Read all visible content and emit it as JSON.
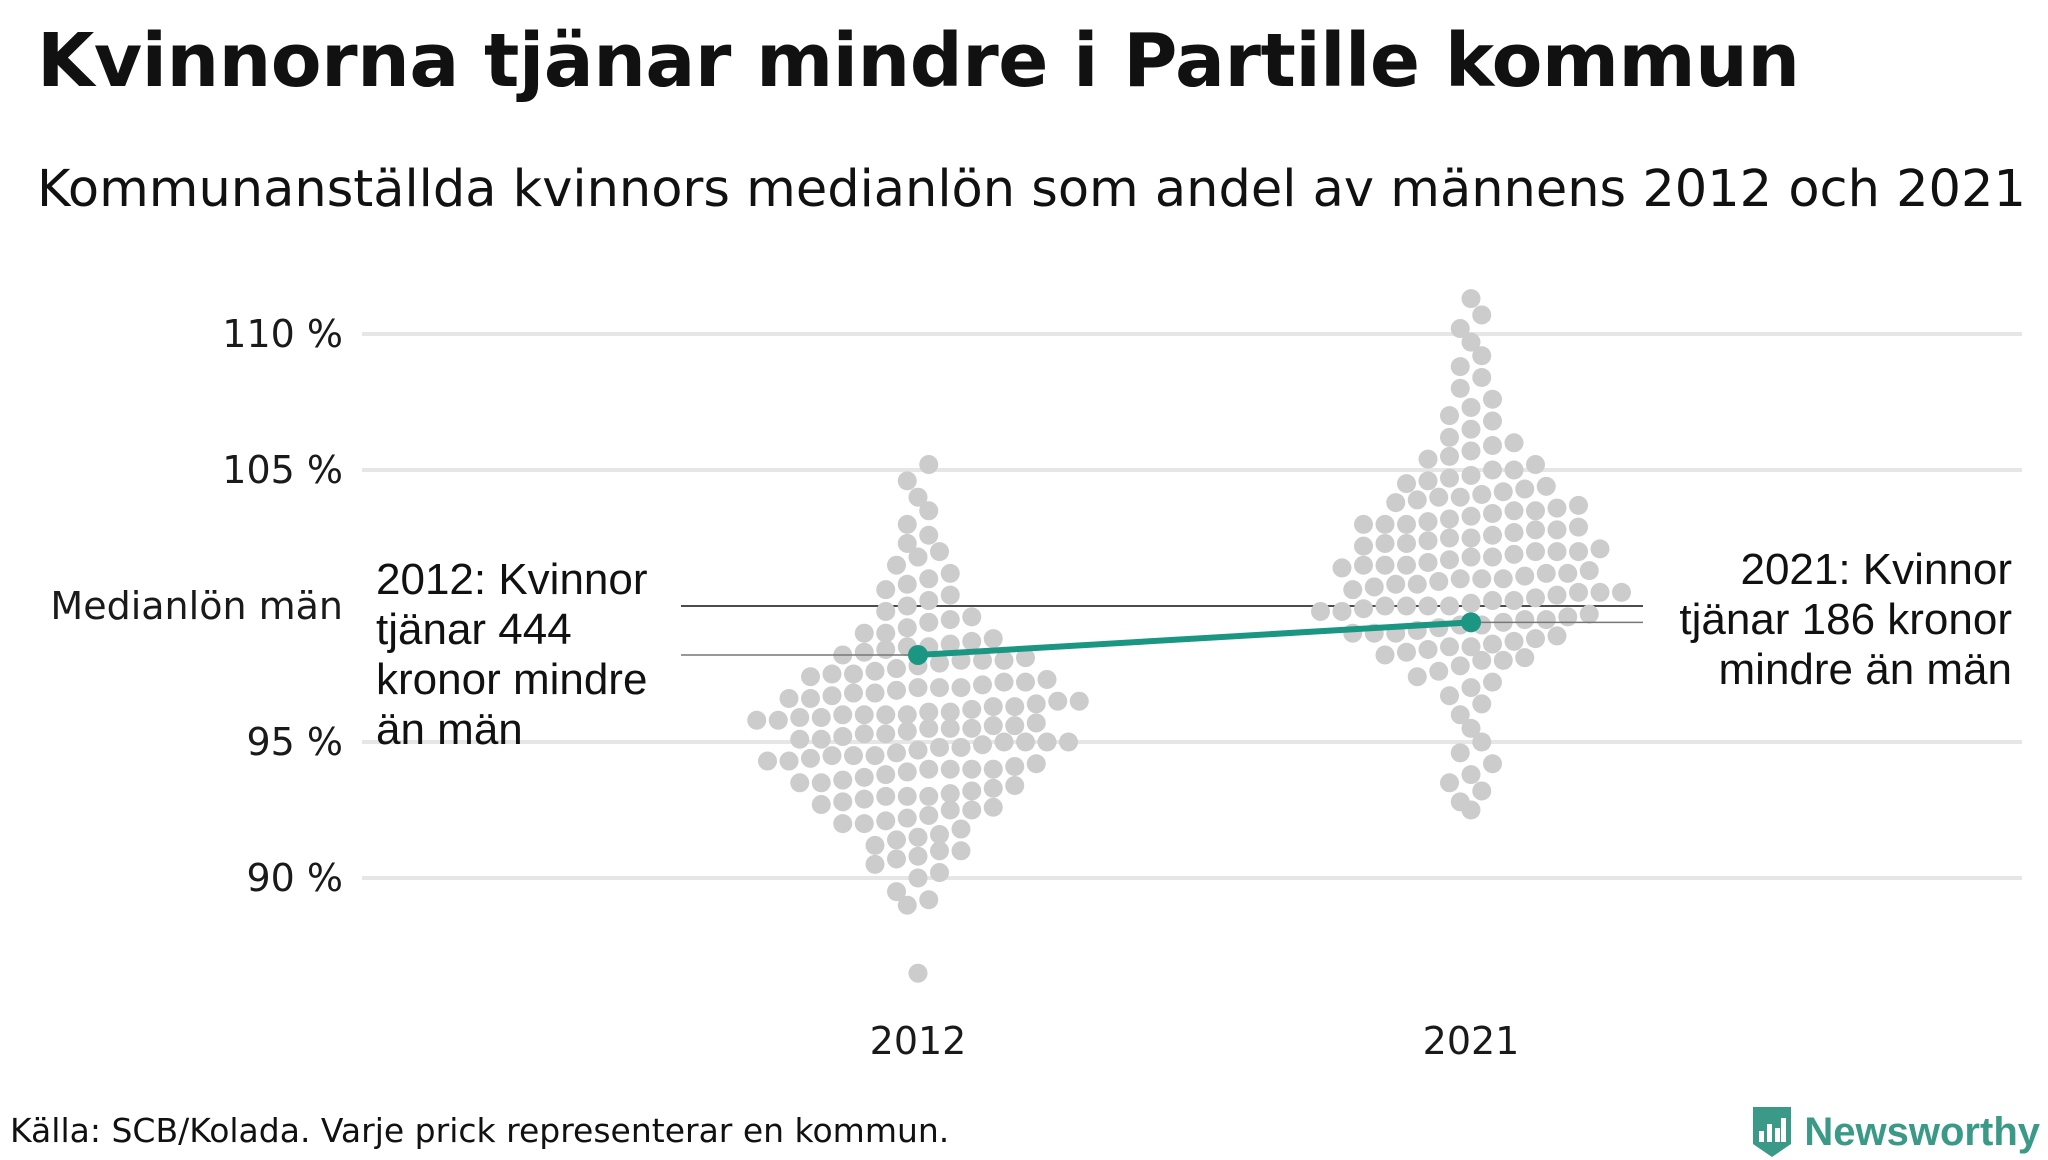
{
  "title": "Kvinnorna tjänar mindre i Partille kommun",
  "subtitle": "Kommunanställda kvinnors medianlön som andel av männens 2012 och 2021",
  "source": "Källa: SCB/Kolada. Varje prick representerar en kommun.",
  "brand": {
    "name": "Newsworthy",
    "icon": "newsworthy-logo-icon",
    "color": "#3a9a87"
  },
  "chart_data": {
    "type": "scatter",
    "variant": "beeswarm",
    "title": "Kvinnorna tjänar mindre i Partille kommun",
    "subtitle": "Kommunanställda kvinnors medianlön som andel av männens 2012 och 2021",
    "categories": [
      "2012",
      "2021"
    ],
    "y_ticks": [
      {
        "value": 90,
        "label": "90 %"
      },
      {
        "value": 95,
        "label": "95 %"
      },
      {
        "value": 100,
        "label": "Medianlön män"
      },
      {
        "value": 105,
        "label": "105 %"
      },
      {
        "value": 110,
        "label": "110 %"
      }
    ],
    "ylim": [
      86,
      112
    ],
    "grid": true,
    "reference_line": {
      "value": 100,
      "label": "Medianlön män"
    },
    "distribution_color": "#cccccc",
    "highlight_color": "#1a9682",
    "distributions": [
      {
        "category": "2012",
        "summary": {
          "min": 86.5,
          "max": 105.2,
          "center": 96
        },
        "values": [
          86.5,
          89,
          89.2,
          89.5,
          90,
          90.2,
          90.5,
          90.7,
          90.8,
          91,
          91,
          91.2,
          91.4,
          91.5,
          91.6,
          91.8,
          92,
          92,
          92.1,
          92.2,
          92.3,
          92.5,
          92.5,
          92.6,
          92.7,
          92.8,
          92.9,
          93,
          93,
          93,
          93.1,
          93.2,
          93.3,
          93.4,
          93.5,
          93.5,
          93.6,
          93.7,
          93.8,
          93.9,
          94,
          94,
          94,
          94,
          94.1,
          94.2,
          94.3,
          94.3,
          94.4,
          94.5,
          94.5,
          94.5,
          94.6,
          94.7,
          94.8,
          94.8,
          94.9,
          95,
          95,
          95,
          95,
          95.1,
          95.1,
          95.2,
          95.3,
          95.3,
          95.4,
          95.5,
          95.5,
          95.5,
          95.6,
          95.6,
          95.7,
          95.8,
          95.8,
          95.9,
          95.9,
          96,
          96,
          96,
          96,
          96.1,
          96.1,
          96.2,
          96.3,
          96.3,
          96.4,
          96.5,
          96.5,
          96.6,
          96.6,
          96.7,
          96.8,
          96.8,
          96.9,
          97,
          97,
          97,
          97.1,
          97.2,
          97.2,
          97.3,
          97.4,
          97.5,
          97.5,
          97.6,
          97.7,
          97.8,
          97.9,
          98,
          98,
          98,
          98.1,
          98.2,
          98.3,
          98.4,
          98.5,
          98.5,
          98.6,
          98.7,
          98.8,
          99,
          99,
          99.2,
          99.4,
          99.5,
          99.6,
          99.8,
          100,
          100.2,
          100.4,
          100.6,
          100.8,
          101,
          101.2,
          101.5,
          101.8,
          102,
          102.3,
          102.6,
          103,
          103.5,
          104,
          104.6,
          105.2
        ]
      },
      {
        "category": "2021",
        "summary": {
          "min": 92.5,
          "max": 111.3,
          "center": 101.5
        },
        "values": [
          92.5,
          92.8,
          93.2,
          93.5,
          93.8,
          94.2,
          94.6,
          95,
          95.5,
          96,
          96.4,
          96.7,
          97,
          97.2,
          97.4,
          97.6,
          97.8,
          98,
          98,
          98.1,
          98.2,
          98.3,
          98.4,
          98.5,
          98.5,
          98.6,
          98.7,
          98.8,
          98.9,
          99,
          99,
          99,
          99.1,
          99.2,
          99.3,
          99.3,
          99.4,
          99.5,
          99.5,
          99.6,
          99.7,
          99.8,
          99.8,
          99.9,
          100,
          100,
          100,
          100,
          100.1,
          100.2,
          100.2,
          100.3,
          100.4,
          100.5,
          100.5,
          100.5,
          100.6,
          100.7,
          100.8,
          100.8,
          100.9,
          101,
          101,
          101,
          101.1,
          101.2,
          101.2,
          101.3,
          101.4,
          101.5,
          101.5,
          101.5,
          101.6,
          101.7,
          101.8,
          101.8,
          101.9,
          102,
          102,
          102,
          102.1,
          102.2,
          102.3,
          102.3,
          102.4,
          102.5,
          102.5,
          102.6,
          102.7,
          102.8,
          102.8,
          102.9,
          103,
          103,
          103,
          103.1,
          103.2,
          103.3,
          103.4,
          103.5,
          103.5,
          103.6,
          103.7,
          103.8,
          103.9,
          104,
          104,
          104.1,
          104.2,
          104.3,
          104.4,
          104.5,
          104.6,
          104.7,
          104.8,
          105,
          105,
          105.2,
          105.4,
          105.5,
          105.7,
          105.9,
          106,
          106.2,
          106.5,
          106.8,
          107,
          107.3,
          107.6,
          108,
          108.4,
          108.8,
          109.2,
          109.7,
          110.2,
          110.7,
          111.3
        ]
      }
    ],
    "highlight": {
      "name": "Partille",
      "points": [
        {
          "x": "2012",
          "y": 98.2
        },
        {
          "x": "2021",
          "y": 99.4
        }
      ]
    },
    "annotations": [
      {
        "category": "2012",
        "lines": [
          "2012: Kvinnor",
          "tjänar 444",
          "kronor mindre",
          "än män"
        ]
      },
      {
        "category": "2021",
        "lines": [
          "2021: Kvinnor",
          "tjänar 186 kronor",
          "mindre än män"
        ]
      }
    ]
  }
}
